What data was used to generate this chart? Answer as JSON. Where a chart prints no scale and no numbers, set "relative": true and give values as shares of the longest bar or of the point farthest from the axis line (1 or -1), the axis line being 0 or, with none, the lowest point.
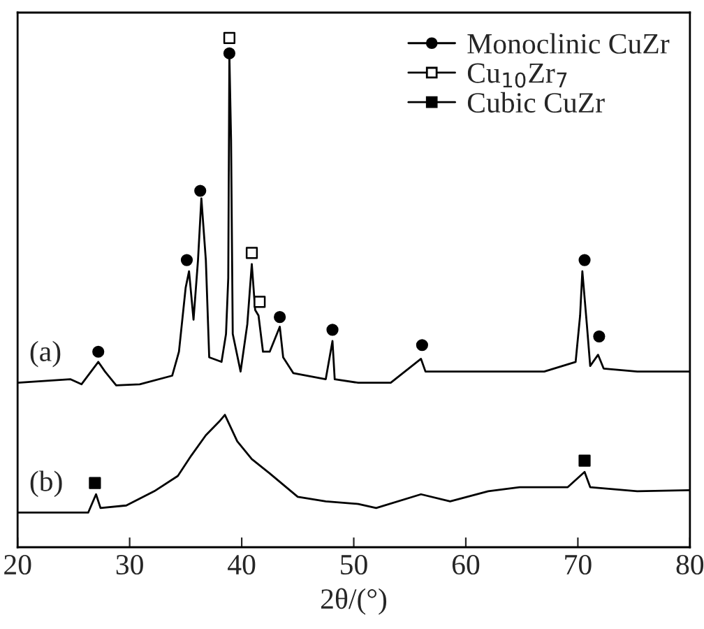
{
  "chart_data": {
    "type": "line",
    "relative": true,
    "xlabel": "2θ/(°)",
    "xlim": [
      20,
      80
    ],
    "xticks": [
      20,
      30,
      40,
      50,
      60,
      70,
      80
    ],
    "grid": false,
    "legend": "top right",
    "line_style": "solid",
    "annotations": [
      "(a)",
      "(b)"
    ],
    "series": [
      {
        "color": "#000000",
        "x": [
          20,
          24.7,
          25.7,
          27.2,
          27.8,
          28.8,
          30.9,
          33.8,
          34.4,
          35.0,
          35.3,
          35.7,
          36.1,
          36.4,
          36.8,
          37.1,
          38.2,
          38.6,
          38.8,
          38.9,
          39.05,
          39.2,
          39.9,
          40.5,
          40.9,
          41.2,
          41.5,
          41.9,
          42.5,
          43.4,
          43.7,
          44.6,
          47.5,
          48.1,
          48.3,
          50.4,
          53.3,
          56.0,
          56.4,
          58.6,
          62.9,
          67.0,
          69.8,
          70.2,
          70.4,
          70.8,
          71.1,
          71.8,
          72.3,
          75.3,
          80
        ],
        "values": [
          0.323,
          0.33,
          0.32,
          0.364,
          0.345,
          0.318,
          0.32,
          0.337,
          0.384,
          0.51,
          0.542,
          0.447,
          0.564,
          0.685,
          0.564,
          0.373,
          0.364,
          0.419,
          0.529,
          0.967,
          0.8,
          0.419,
          0.345,
          0.438,
          0.556,
          0.466,
          0.455,
          0.384,
          0.384,
          0.433,
          0.373,
          0.342,
          0.33,
          0.405,
          0.33,
          0.323,
          0.323,
          0.37,
          0.345,
          0.345,
          0.345,
          0.345,
          0.364,
          0.455,
          0.542,
          0.438,
          0.356,
          0.378,
          0.351,
          0.345,
          0.345
        ]
      },
      {
        "color": "#000000",
        "x": [
          20,
          26.3,
          27.0,
          27.4,
          29.7,
          32.2,
          34.3,
          35.5,
          36.8,
          38.0,
          38.5,
          39.6,
          40.9,
          42.5,
          45.0,
          47.5,
          50.4,
          52.0,
          56.0,
          58.6,
          62.0,
          64.8,
          69.1,
          70.6,
          71.1,
          75.3,
          80
        ],
        "values": [
          0.068,
          0.068,
          0.104,
          0.077,
          0.082,
          0.11,
          0.14,
          0.18,
          0.22,
          0.247,
          0.26,
          0.208,
          0.173,
          0.145,
          0.099,
          0.09,
          0.085,
          0.077,
          0.104,
          0.09,
          0.11,
          0.118,
          0.118,
          0.148,
          0.118,
          0.11,
          0.112
        ]
      },
      {
        "type": "scatter",
        "name": "Monoclinic CuZr",
        "color": "#000000",
        "marker": "circle",
        "x": [
          27.2,
          35.1,
          36.3,
          38.9,
          43.4,
          48.1,
          56.1,
          70.6,
          71.9
        ],
        "values": [
          0.384,
          0.564,
          0.7,
          0.97,
          0.452,
          0.427,
          0.397,
          0.564,
          0.414
        ]
      },
      {
        "type": "scatter",
        "name": "Cu$_{10}$Zr$_{7}$",
        "color": "#ffffff",
        "marker": "square",
        "x": [
          38.9,
          40.9,
          41.6
        ],
        "values": [
          1.0,
          0.578,
          0.482
        ]
      },
      {
        "type": "scatter",
        "name": "Cubic CuZr",
        "color": "#000000",
        "marker": "square",
        "x": [
          26.9,
          70.6
        ],
        "values": [
          0.126,
          0.17
        ]
      }
    ]
  }
}
